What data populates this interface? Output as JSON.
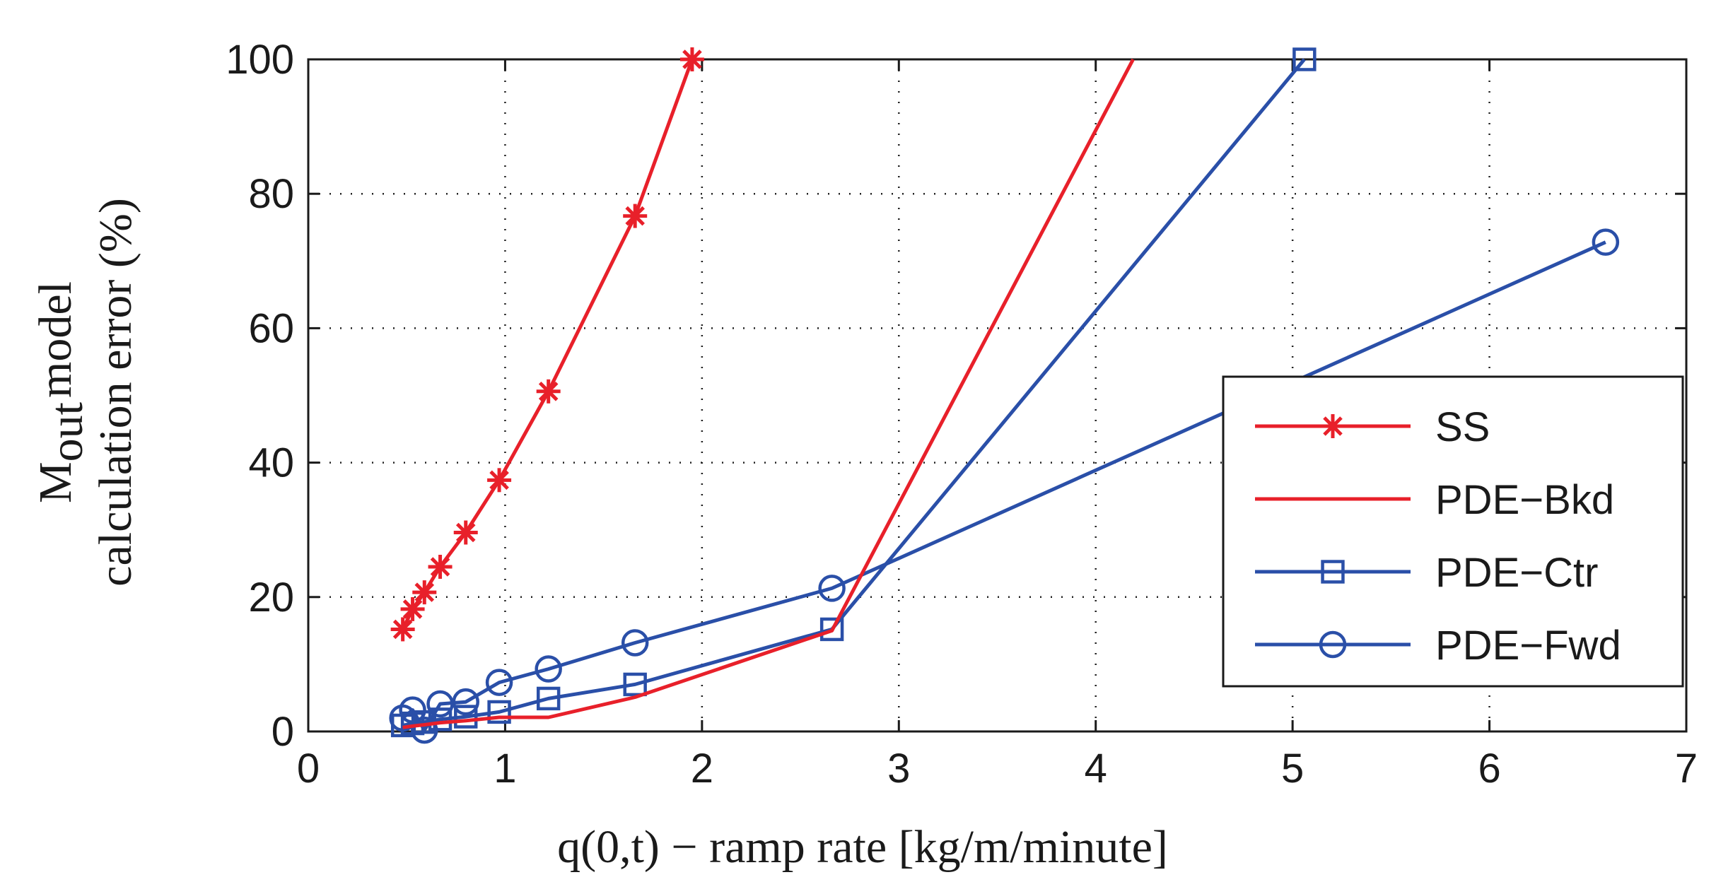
{
  "chart_data": {
    "type": "line",
    "title": "",
    "xlabel": "q(0,t) − ramp rate [kg/m/minute]",
    "ylabel": {
      "line1_main": "M",
      "line1_sub": "out",
      "line1_rest": "model",
      "line2": "calculation error (%)"
    },
    "xlim": [
      0,
      7
    ],
    "ylim": [
      0,
      100
    ],
    "xticks": [
      "0",
      "1",
      "2",
      "3",
      "4",
      "5",
      "6",
      "7"
    ],
    "yticks": [
      "0",
      "20",
      "40",
      "60",
      "80",
      "100"
    ],
    "grid": true,
    "legend_position": "right",
    "series": [
      {
        "name": "SS",
        "color": "#e8202a",
        "marker": "asterisk",
        "x": [
          0.48,
          0.53,
          0.59,
          0.67,
          0.8,
          0.97,
          1.22,
          1.66,
          1.95
        ],
        "y": [
          15.2,
          18.2,
          20.7,
          24.5,
          29.6,
          37.4,
          50.6,
          76.7,
          100
        ]
      },
      {
        "name": "PDE−Bkd",
        "color": "#e8202a",
        "marker": "none",
        "x": [
          0.48,
          0.53,
          0.59,
          0.67,
          0.8,
          0.97,
          1.22,
          1.66,
          2.66,
          4.19
        ],
        "y": [
          0.6,
          0.8,
          1.0,
          1.3,
          1.6,
          2.1,
          2.1,
          5.1,
          15.0,
          100
        ]
      },
      {
        "name": "PDE−Ctr",
        "color": "#2a4fa8",
        "marker": "square",
        "x": [
          0.48,
          0.53,
          0.59,
          0.67,
          0.8,
          0.97,
          1.22,
          1.66,
          2.66,
          5.06
        ],
        "y": [
          0.9,
          1.2,
          1.4,
          1.8,
          2.2,
          2.9,
          4.9,
          7.0,
          15.2,
          100
        ]
      },
      {
        "name": "PDE−Fwd",
        "color": "#2a4fa8",
        "marker": "circle",
        "x": [
          0.48,
          0.53,
          0.59,
          0.67,
          0.8,
          0.97,
          1.22,
          1.66,
          2.66,
          6.59
        ],
        "y": [
          2.0,
          3.2,
          0.2,
          4.1,
          4.4,
          7.3,
          9.3,
          13.2,
          21.3,
          72.8
        ]
      }
    ]
  }
}
